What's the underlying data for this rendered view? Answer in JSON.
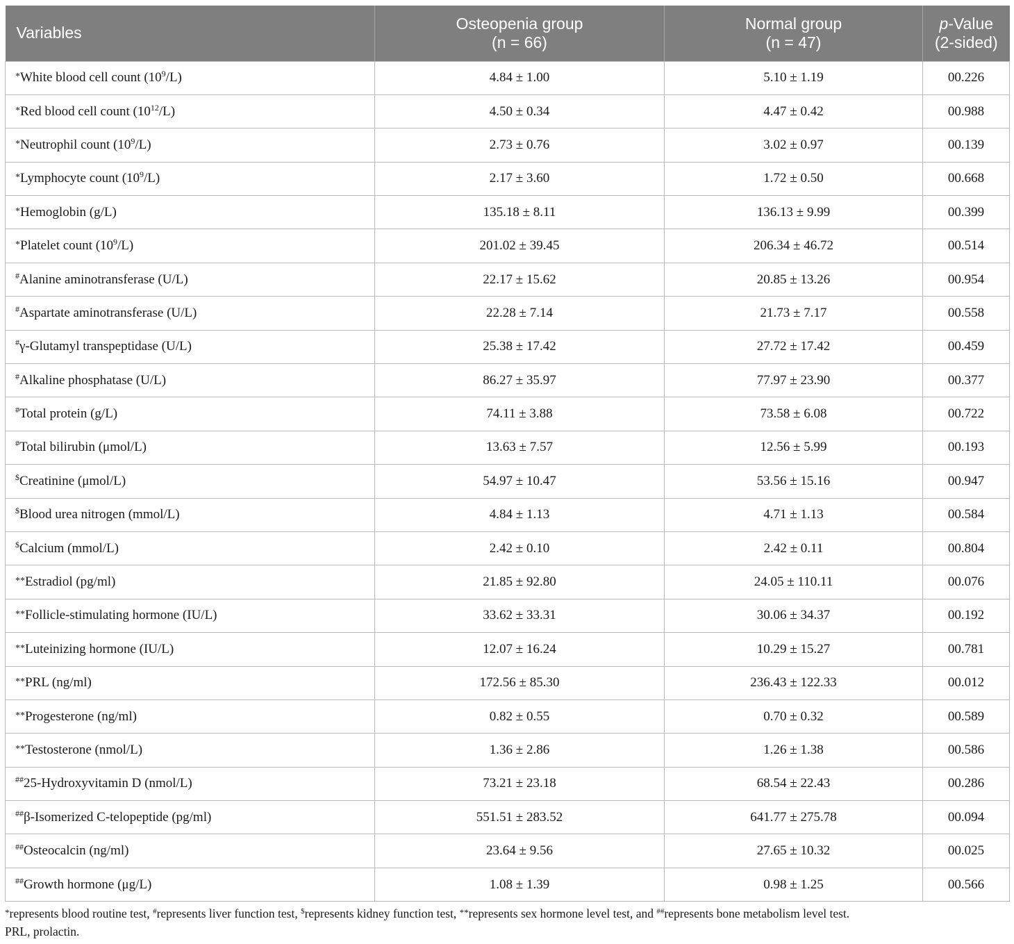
{
  "table": {
    "headers": {
      "variables": "Variables",
      "osteopenia_line1": "Osteopenia group",
      "osteopenia_line2": "(n = 66)",
      "normal_line1": "Normal group",
      "normal_line2": "(n = 47)",
      "pvalue_italic": "p",
      "pvalue_rest": "-Value",
      "pvalue_line2": "(2-sided)"
    },
    "rows": [
      {
        "mark": "*",
        "pre": "White blood cell count (10",
        "sup": "9",
        "post": "/L)",
        "osteopenia": "4.84 ± 1.00",
        "normal": "5.10 ± 1.19",
        "p": "00.226"
      },
      {
        "mark": "*",
        "pre": "Red blood cell count (10",
        "sup": "12",
        "post": "/L)",
        "osteopenia": "4.50 ± 0.34",
        "normal": "4.47 ± 0.42",
        "p": "00.988"
      },
      {
        "mark": "*",
        "pre": "Neutrophil count (10",
        "sup": "9",
        "post": "/L)",
        "osteopenia": "2.73 ± 0.76",
        "normal": "3.02 ± 0.97",
        "p": "00.139"
      },
      {
        "mark": "*",
        "pre": "Lymphocyte count (10",
        "sup": "9",
        "post": "/L)",
        "osteopenia": "2.17 ± 3.60",
        "normal": "1.72 ± 0.50",
        "p": "00.668"
      },
      {
        "mark": "*",
        "pre": "Hemoglobin (g/L)",
        "sup": "",
        "post": "",
        "osteopenia": "135.18 ± 8.11",
        "normal": "136.13 ± 9.99",
        "p": "00.399"
      },
      {
        "mark": "*",
        "pre": "Platelet count (10",
        "sup": "9",
        "post": "/L)",
        "osteopenia": "201.02 ± 39.45",
        "normal": "206.34 ± 46.72",
        "p": "00.514"
      },
      {
        "mark": "#",
        "pre": "Alanine aminotransferase (U/L)",
        "sup": "",
        "post": "",
        "osteopenia": "22.17 ± 15.62",
        "normal": "20.85 ± 13.26",
        "p": "00.954"
      },
      {
        "mark": "#",
        "pre": "Aspartate aminotransferase (U/L)",
        "sup": "",
        "post": "",
        "osteopenia": "22.28 ± 7.14",
        "normal": "21.73 ± 7.17",
        "p": "00.558"
      },
      {
        "mark": "#",
        "pre": "γ-Glutamyl transpeptidase (U/L)",
        "sup": "",
        "post": "",
        "osteopenia": "25.38 ± 17.42",
        "normal": "27.72 ± 17.42",
        "p": "00.459"
      },
      {
        "mark": "#",
        "pre": "Alkaline phosphatase (U/L)",
        "sup": "",
        "post": "",
        "osteopenia": "86.27 ± 35.97",
        "normal": "77.97 ± 23.90",
        "p": "00.377"
      },
      {
        "mark": "#",
        "pre": "Total protein (g/L)",
        "sup": "",
        "post": "",
        "osteopenia": "74.11 ± 3.88",
        "normal": "73.58 ± 6.08",
        "p": "00.722"
      },
      {
        "mark": "#",
        "pre": "Total bilirubin (μmol/L)",
        "sup": "",
        "post": "",
        "osteopenia": "13.63 ± 7.57",
        "normal": "12.56 ± 5.99",
        "p": "00.193"
      },
      {
        "mark": "$",
        "pre": "Creatinine (μmol/L)",
        "sup": "",
        "post": "",
        "osteopenia": "54.97 ± 10.47",
        "normal": "53.56 ± 15.16",
        "p": "00.947"
      },
      {
        "mark": "$",
        "pre": "Blood urea nitrogen (mmol/L)",
        "sup": "",
        "post": "",
        "osteopenia": "4.84 ± 1.13",
        "normal": "4.71 ± 1.13",
        "p": "00.584"
      },
      {
        "mark": "$",
        "pre": "Calcium (mmol/L)",
        "sup": "",
        "post": "",
        "osteopenia": "2.42 ± 0.10",
        "normal": "2.42 ± 0.11",
        "p": "00.804"
      },
      {
        "mark": "**",
        "pre": "Estradiol (pg/ml)",
        "sup": "",
        "post": "",
        "osteopenia": "21.85 ± 92.80",
        "normal": "24.05 ± 110.11",
        "p": "00.076"
      },
      {
        "mark": "**",
        "pre": "Follicle-stimulating hormone (IU/L)",
        "sup": "",
        "post": "",
        "osteopenia": "33.62 ± 33.31",
        "normal": "30.06 ± 34.37",
        "p": "00.192"
      },
      {
        "mark": "**",
        "pre": "Luteinizing hormone (IU/L)",
        "sup": "",
        "post": "",
        "osteopenia": "12.07 ± 16.24",
        "normal": "10.29 ± 15.27",
        "p": "00.781"
      },
      {
        "mark": "**",
        "pre": "PRL (ng/ml)",
        "sup": "",
        "post": "",
        "osteopenia": "172.56 ± 85.30",
        "normal": "236.43 ± 122.33",
        "p": "00.012"
      },
      {
        "mark": "**",
        "pre": "Progesterone (ng/ml)",
        "sup": "",
        "post": "",
        "osteopenia": "0.82 ± 0.55",
        "normal": "0.70 ± 0.32",
        "p": "00.589"
      },
      {
        "mark": "**",
        "pre": "Testosterone (nmol/L)",
        "sup": "",
        "post": "",
        "osteopenia": "1.36 ± 2.86",
        "normal": "1.26 ± 1.38",
        "p": "00.586"
      },
      {
        "mark": "##",
        "pre": "25-Hydroxyvitamin D (nmol/L)",
        "sup": "",
        "post": "",
        "osteopenia": "73.21 ± 23.18",
        "normal": "68.54 ± 22.43",
        "p": "00.286"
      },
      {
        "mark": "##",
        "pre": "β-Isomerized C-telopeptide (pg/ml)",
        "sup": "",
        "post": "",
        "osteopenia": "551.51 ± 283.52",
        "normal": "641.77 ± 275.78",
        "p": "00.094"
      },
      {
        "mark": "##",
        "pre": "Osteocalcin (ng/ml)",
        "sup": "",
        "post": "",
        "osteopenia": "23.64 ± 9.56",
        "normal": "27.65 ± 10.32",
        "p": "00.025"
      },
      {
        "mark": "##",
        "pre": "Growth hormone (μg/L)",
        "sup": "",
        "post": "",
        "osteopenia": "1.08 ± 1.39",
        "normal": "0.98 ± 1.25",
        "p": "00.566"
      }
    ]
  },
  "footnote": {
    "m1": "*",
    "t1": "represents blood routine test, ",
    "m2": "#",
    "t2": "represents liver function test, ",
    "m3": "$",
    "t3": "represents kidney function test, ",
    "m4": "**",
    "t4": "represents sex hormone level test, and ",
    "m5": "##",
    "t5": "represents bone metabolism level test.",
    "abbrev": "PRL, prolactin."
  },
  "colors": {
    "header_bg": "#7f7f7f",
    "header_text": "#ffffff",
    "grid": "#b9b9b9"
  }
}
